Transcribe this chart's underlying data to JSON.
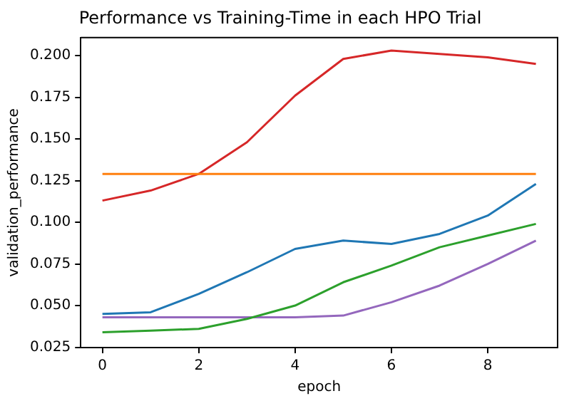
{
  "chart_data": {
    "type": "line",
    "title": "Performance vs Training-Time in each HPO Trial",
    "xlabel": "epoch",
    "ylabel": "validation_performance",
    "x": [
      0,
      1,
      2,
      3,
      4,
      5,
      6,
      7,
      8,
      9
    ],
    "series": [
      {
        "color": "#1f77b4",
        "values": [
          0.045,
          0.046,
          0.057,
          0.07,
          0.084,
          0.089,
          0.087,
          0.093,
          0.104,
          0.123
        ]
      },
      {
        "color": "#ff7f0e",
        "values": [
          0.129,
          0.129,
          0.129,
          0.129,
          0.129,
          0.129,
          0.129,
          0.129,
          0.129,
          0.129
        ]
      },
      {
        "color": "#2ca02c",
        "values": [
          0.034,
          0.035,
          0.036,
          0.042,
          0.05,
          0.064,
          0.074,
          0.085,
          0.092,
          0.099
        ]
      },
      {
        "color": "#d62728",
        "values": [
          0.113,
          0.119,
          0.129,
          0.148,
          0.176,
          0.198,
          0.203,
          0.201,
          0.199,
          0.195
        ]
      },
      {
        "color": "#9467bd",
        "values": [
          0.043,
          0.043,
          0.043,
          0.043,
          0.043,
          0.044,
          0.052,
          0.062,
          0.075,
          0.089
        ]
      }
    ],
    "xlim": [
      -0.45,
      9.45
    ],
    "xticks": [
      0,
      2,
      4,
      6,
      8
    ],
    "ylim": [
      0.0248,
      0.2108
    ],
    "yticks": [
      {
        "value": 0.025,
        "label": "0.025"
      },
      {
        "value": 0.05,
        "label": "0.050"
      },
      {
        "value": 0.075,
        "label": "0.075"
      },
      {
        "value": 0.1,
        "label": "0.100"
      },
      {
        "value": 0.125,
        "label": "0.125"
      },
      {
        "value": 0.15,
        "label": "0.150"
      },
      {
        "value": 0.175,
        "label": "0.175"
      },
      {
        "value": 0.2,
        "label": "0.200"
      }
    ],
    "grid": false,
    "legend": false,
    "marker": "none",
    "line_style": "solid"
  }
}
